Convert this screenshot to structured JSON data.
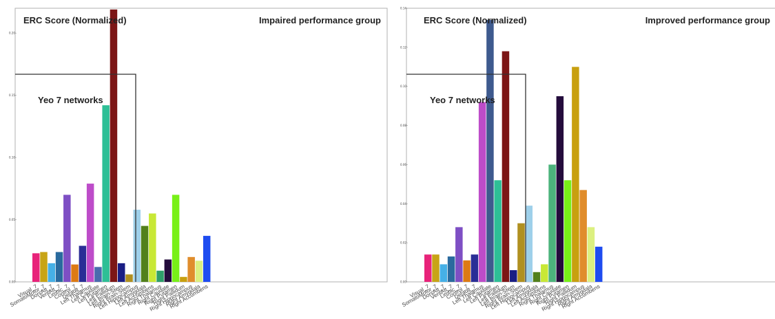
{
  "chart_data": [
    {
      "type": "bar",
      "title": "ERC Score (Normalized)",
      "group_label": "Impaired performance group",
      "bracket_label": "Yeo 7 networks",
      "ylim": [
        0,
        0.22
      ],
      "yticks": [
        0.0,
        0.05,
        0.1,
        0.15,
        0.2
      ],
      "ytick_labels": [
        "0.00",
        "0.05",
        "0.10",
        "0.15",
        "0.20"
      ],
      "categories": [
        "Visual_7",
        "SomatoMotor_7",
        "DorsAtt_7",
        "VentAtt_7",
        "Limbic_7",
        "Control_7",
        "Default_7",
        "Left Thalamus",
        "Left Caudate",
        "Left Putamen",
        "Left Pallidum",
        "Left Brain-Stem",
        "Right Brain-Stem",
        "Left Hippocampus",
        "Left Amygdala",
        "Left Accumbens",
        "Right Thalamus",
        "Right Caudate",
        "Right Putamen",
        "Right Pallidum",
        "Right Hippocampus",
        "Right Amygdala",
        "Right Accumbens"
      ],
      "values": [
        0.023,
        0.024,
        0.015,
        0.024,
        0.07,
        0.014,
        0.029,
        0.079,
        0.012,
        0.142,
        0.219,
        0.015,
        0.006,
        0.058,
        0.045,
        0.055,
        0.009,
        0.018,
        0.07,
        0.004,
        0.02,
        0.017,
        0.037
      ],
      "colors": [
        "#e8237a",
        "#c8a416",
        "#46b0e6",
        "#2a6a9e",
        "#7e4fc4",
        "#dd7a14",
        "#2a2e96",
        "#bd4cc9",
        "#4a6bae",
        "#2ebf96",
        "#7c1616",
        "#1a1e84",
        "#b09020",
        "#9ed0ea",
        "#52801c",
        "#c8e836",
        "#2e9e6a",
        "#240c3c",
        "#78f018",
        "#c8a010",
        "#e08d2c",
        "#dcf080",
        "#1e4cf0"
      ]
    },
    {
      "type": "bar",
      "title": "ERC Score (Normalized)",
      "group_label": "Improved performance group",
      "bracket_label": "Yeo 7 networks",
      "ylim": [
        0,
        0.14
      ],
      "yticks": [
        0.0,
        0.02,
        0.04,
        0.06,
        0.08,
        0.1,
        0.12,
        0.14
      ],
      "ytick_labels": [
        "0.00",
        "0.02",
        "0.04",
        "0.06",
        "0.08",
        "0.10",
        "0.12",
        "0.14"
      ],
      "categories": [
        "Visual_7",
        "SomatoMotor_7",
        "DorsAtt_7",
        "VentAtt_7",
        "Limbic_7",
        "Control_7",
        "Default_7",
        "Left Thalamus",
        "Left Caudate",
        "Left Putamen",
        "Left Pallidum",
        "Left Brain-Stem",
        "Right Brain-Stem",
        "Left Hippocampus",
        "Left Amygdala",
        "Left Accumbens",
        "Right Thalamus",
        "Right Caudate",
        "Right Putamen",
        "Right Pallidum",
        "Right Hippocampus",
        "Right Amygdala",
        "Right Accumbens"
      ],
      "values": [
        0.014,
        0.014,
        0.009,
        0.013,
        0.028,
        0.011,
        0.014,
        0.092,
        0.134,
        0.052,
        0.118,
        0.006,
        0.03,
        0.039,
        0.005,
        0.009,
        0.06,
        0.095,
        0.052,
        0.11,
        0.047,
        0.028,
        0.018
      ],
      "colors": [
        "#e8237a",
        "#c8a416",
        "#46b0e6",
        "#2a6a9e",
        "#7e4fc4",
        "#dd7a14",
        "#2a2e96",
        "#bd4cc9",
        "#3e5a8e",
        "#2ebf96",
        "#7c1616",
        "#1a1e84",
        "#b09020",
        "#9ed0ea",
        "#52801c",
        "#c8e836",
        "#4cb47c",
        "#240c3c",
        "#78f018",
        "#c8a010",
        "#e08d2c",
        "#dcf080",
        "#1e4cf0"
      ]
    }
  ]
}
